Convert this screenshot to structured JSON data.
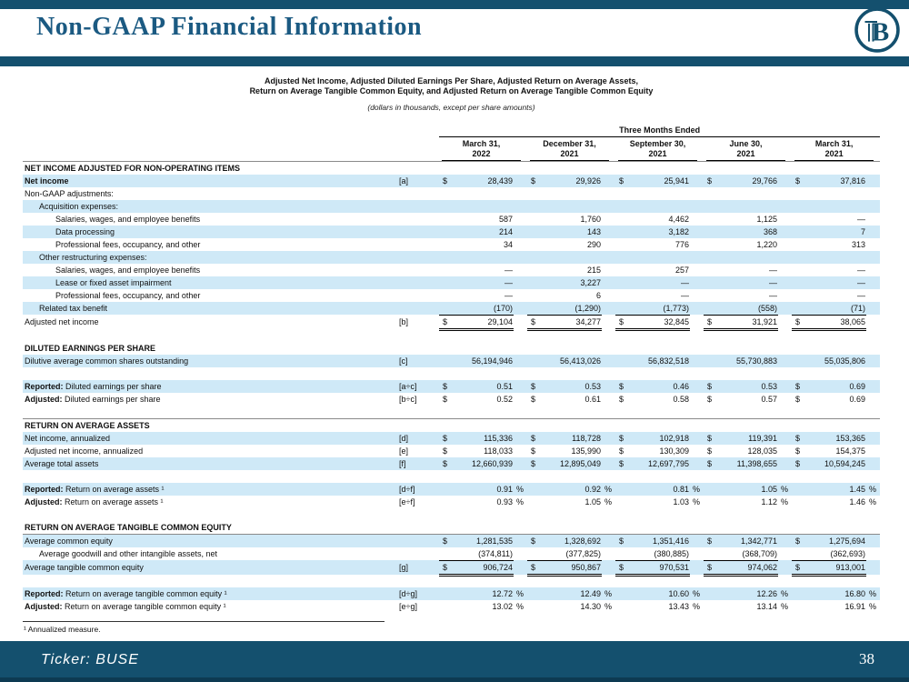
{
  "header": {
    "title": "Non-GAAP Financial Information",
    "logo_letter": "B"
  },
  "subtitle": {
    "line1": "Adjusted Net Income, Adjusted Diluted Earnings Per Share, Adjusted Return on Average Assets,",
    "line2": "Return on Average Tangible Common Equity, and Adjusted Return on Average Tangible Common Equity",
    "note": "(dollars in thousands, except per share amounts)"
  },
  "table": {
    "group_header": "Three Months Ended",
    "columns": [
      [
        "March 31,",
        "2022"
      ],
      [
        "December 31,",
        "2021"
      ],
      [
        "September 30,",
        "2021"
      ],
      [
        "June 30,",
        "2021"
      ],
      [
        "March 31,",
        "2021"
      ]
    ],
    "rows": [
      {
        "t": "section",
        "label": "NET INCOME ADJUSTED FOR NON-OPERATING ITEMS",
        "hairline": true
      },
      {
        "t": "row",
        "label": "Net income",
        "bold": true,
        "shaded": true,
        "ref": "[a]",
        "dollar": true,
        "values": [
          "28,439",
          "29,926",
          "25,941",
          "29,766",
          "37,816"
        ]
      },
      {
        "t": "row",
        "label": "Non-GAAP adjustments:"
      },
      {
        "t": "row",
        "label": "Acquisition expenses:",
        "indent": 1,
        "shaded": true
      },
      {
        "t": "row",
        "label": "Salaries, wages, and employee benefits",
        "indent": 2,
        "values": [
          "587",
          "1,760",
          "4,462",
          "1,125",
          "—"
        ]
      },
      {
        "t": "row",
        "label": "Data processing",
        "indent": 2,
        "shaded": true,
        "values": [
          "214",
          "143",
          "3,182",
          "368",
          "7"
        ]
      },
      {
        "t": "row",
        "label": "Professional fees, occupancy, and other",
        "indent": 2,
        "values": [
          "34",
          "290",
          "776",
          "1,220",
          "313"
        ]
      },
      {
        "t": "row",
        "label": "Other restructuring expenses:",
        "indent": 1,
        "shaded": true
      },
      {
        "t": "row",
        "label": "Salaries, wages, and employee benefits",
        "indent": 2,
        "values": [
          "—",
          "215",
          "257",
          "—",
          "—"
        ]
      },
      {
        "t": "row",
        "label": "Lease or fixed asset impairment",
        "indent": 2,
        "shaded": true,
        "values": [
          "—",
          "3,227",
          "—",
          "—",
          "—"
        ]
      },
      {
        "t": "row",
        "label": "Professional fees, occupancy, and other",
        "indent": 2,
        "values": [
          "—",
          "6",
          "—",
          "—",
          "—"
        ]
      },
      {
        "t": "row",
        "label": "Related tax benefit",
        "indent": 1,
        "shaded": true,
        "underline": "u1",
        "values": [
          "(170)",
          "(1,290)",
          "(1,773)",
          "(558)",
          "(71)"
        ]
      },
      {
        "t": "row",
        "label": "Adjusted net income",
        "ref": "[b]",
        "dollar": true,
        "underline": "u2",
        "values": [
          "29,104",
          "34,277",
          "32,845",
          "31,921",
          "38,065"
        ]
      },
      {
        "t": "blank"
      },
      {
        "t": "section",
        "label": "DILUTED EARNINGS PER SHARE"
      },
      {
        "t": "row",
        "label": "Dilutive average common shares outstanding",
        "shaded": true,
        "ref": "[c]",
        "values": [
          "56,194,946",
          "56,413,026",
          "56,832,518",
          "55,730,883",
          "55,035,806"
        ]
      },
      {
        "t": "blank"
      },
      {
        "t": "row",
        "prefix": "Reported:",
        "label": " Diluted earnings per share",
        "shaded": true,
        "ref": "[a÷c]",
        "dollar": true,
        "values": [
          "0.51",
          "0.53",
          "0.46",
          "0.53",
          "0.69"
        ]
      },
      {
        "t": "row",
        "prefix": "Adjusted:",
        "label": " Diluted earnings per share",
        "ref": "[b÷c]",
        "dollar": true,
        "values": [
          "0.52",
          "0.61",
          "0.58",
          "0.57",
          "0.69"
        ]
      },
      {
        "t": "blank"
      },
      {
        "t": "section",
        "label": "RETURN ON AVERAGE ASSETS",
        "hairline": true
      },
      {
        "t": "row",
        "label": "Net income, annualized",
        "shaded": true,
        "ref": "[d]",
        "dollar": true,
        "values": [
          "115,336",
          "118,728",
          "102,918",
          "119,391",
          "153,365"
        ]
      },
      {
        "t": "row",
        "label": "Adjusted net income, annualized",
        "ref": "[e]",
        "dollar": true,
        "values": [
          "118,033",
          "135,990",
          "130,309",
          "128,035",
          "154,375"
        ]
      },
      {
        "t": "row",
        "label": "Average total assets",
        "shaded": true,
        "ref": "[f]",
        "dollar": true,
        "values": [
          "12,660,939",
          "12,895,049",
          "12,697,795",
          "11,398,655",
          "10,594,245"
        ]
      },
      {
        "t": "blank"
      },
      {
        "t": "row",
        "prefix": "Reported:",
        "label": " Return on average assets ¹",
        "shaded": true,
        "ref": "[d÷f]",
        "pct": true,
        "values": [
          "0.91",
          "0.92",
          "0.81",
          "1.05",
          "1.45"
        ]
      },
      {
        "t": "row",
        "prefix": "Adjusted:",
        "label": " Return on average assets ¹",
        "ref": "[e÷f]",
        "pct": true,
        "values": [
          "0.93",
          "1.05",
          "1.03",
          "1.12",
          "1.46"
        ]
      },
      {
        "t": "blank"
      },
      {
        "t": "section",
        "label": "RETURN ON AVERAGE TANGIBLE COMMON EQUITY"
      },
      {
        "t": "row",
        "label": "Average common equity",
        "shaded": true,
        "hairline": true,
        "dollar": true,
        "values": [
          "1,281,535",
          "1,328,692",
          "1,351,416",
          "1,342,771",
          "1,275,694"
        ]
      },
      {
        "t": "row",
        "label": "Average goodwill and other intangible assets, net",
        "indent": 1,
        "underline": "u1",
        "values": [
          "(374,811)",
          "(377,825)",
          "(380,885)",
          "(368,709)",
          "(362,693)"
        ]
      },
      {
        "t": "row",
        "label": "Average tangible common equity",
        "shaded": true,
        "ref": "[g]",
        "dollar": true,
        "underline": "u2",
        "values": [
          "906,724",
          "950,867",
          "970,531",
          "974,062",
          "913,001"
        ]
      },
      {
        "t": "blank"
      },
      {
        "t": "row",
        "prefix": "Reported:",
        "label": " Return on average tangible common equity ¹",
        "shaded": true,
        "ref": "[d÷g]",
        "pct": true,
        "values": [
          "12.72",
          "12.49",
          "10.60",
          "12.26",
          "16.80"
        ]
      },
      {
        "t": "row",
        "prefix": "Adjusted:",
        "label": " Return on average tangible common equity ¹",
        "ref": "[e÷g]",
        "pct": true,
        "values": [
          "13.02",
          "14.30",
          "13.43",
          "13.14",
          "16.91"
        ]
      }
    ]
  },
  "footnote": "¹ Annualized measure.",
  "footer": {
    "ticker": "Ticker:  BUSE",
    "page": "38"
  },
  "colors": {
    "navy": "#14506E",
    "title_blue": "#1B5A82",
    "row_shade": "#CFE9F7"
  }
}
